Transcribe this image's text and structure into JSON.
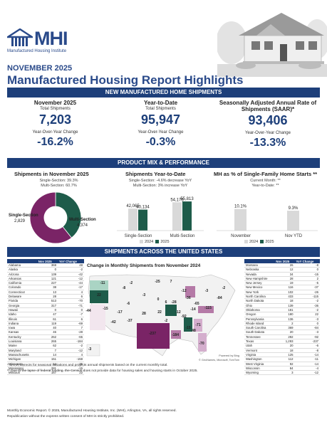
{
  "header": {
    "logo_text": "MHI",
    "logo_sub": "Manufactured Housing Institute",
    "month": "NOVEMBER 2025",
    "title": "Manufactured Housing Report Highlights"
  },
  "sections": {
    "shipments": "NEW MANUFACTURED HOME SHIPMENTS",
    "mix": "PRODUCT MIX & PERFORMANCE",
    "states": "SHIPMENTS ACROSS THE UNITED STATES"
  },
  "kpis": [
    {
      "title": "November 2025",
      "sub": "Total Shipments",
      "value": "7,203",
      "yoy_label": "Year-Over-Year Change",
      "yoy": "-16.2%"
    },
    {
      "title": "Year-to-Date",
      "sub": "Total Shipments",
      "value": "95,947",
      "yoy_label": "Year-Over-Year Change",
      "yoy": "-0.3%"
    },
    {
      "title": "Seasonally Adjusted Annual Rate of Shipments (SAAR)*",
      "sub": "",
      "value": "93,406",
      "yoy_label": "Year-Over-Year Change",
      "yoy": "-13.3%"
    }
  ],
  "mix": {
    "pie_title": "Shipments in November 2025",
    "pie_sub1": "Single-Section: 39.3%",
    "pie_sub2": "Multi-Section: 60.7%",
    "bar_title": "Shipments Year-to-Date",
    "bar_sub1": "Single-Section: -4.6% decrease YoY",
    "bar_sub2": "Multi-Section: 3% increase YoY",
    "line_title": "MH as % of Single-Family Home Starts **",
    "line_sub1": "Current Month: **",
    "line_sub2": "Year-to-Date: **",
    "legend_2024": "2024",
    "legend_2025": "2025"
  },
  "chart_data": [
    {
      "type": "pie",
      "title": "Shipments in November 2025",
      "categories": [
        "Single-Section",
        "Multi-Section"
      ],
      "values": [
        2829,
        4374
      ],
      "labels": [
        "2,829",
        "4,374"
      ],
      "colors": [
        "#1e5c4a",
        "#7a2466"
      ]
    },
    {
      "type": "bar",
      "title": "Shipments Year-to-Date",
      "categories": [
        "Single-Section",
        "Multi-Section"
      ],
      "series": [
        {
          "name": "2024",
          "values": [
            42065,
            54175
          ],
          "labels": [
            "42,065",
            "54,175"
          ],
          "color": "#d9d9d9"
        },
        {
          "name": "2025",
          "values": [
            40134,
            55813
          ],
          "labels": [
            "40,134",
            "55,813"
          ],
          "color": "#1e5c4a"
        }
      ],
      "ylim": [
        0,
        60000
      ]
    },
    {
      "type": "bar",
      "title": "MH as % of Single-Family Home Starts **",
      "categories": [
        "November",
        "Nov YTD"
      ],
      "series": [
        {
          "name": "2024",
          "values": [
            10.1,
            9.3
          ],
          "labels": [
            "10.1%",
            "9.3%"
          ],
          "color": "#d9d9d9"
        }
      ]
    }
  ],
  "states_table": {
    "headers": [
      "",
      "Nov 2025",
      "YoY Change"
    ],
    "left": [
      [
        "Alabama",
        "369",
        "48"
      ],
      [
        "Alaska",
        "0",
        "-2"
      ],
      [
        "Arizona",
        "139",
        "-42"
      ],
      [
        "Arkansas",
        "121",
        "-12"
      ],
      [
        "California",
        "227",
        "-44"
      ],
      [
        "Colorado",
        "38",
        "-17"
      ],
      [
        "Connecticut",
        "13",
        "4"
      ],
      [
        "Delaware",
        "28",
        "6"
      ],
      [
        "Florida",
        "513",
        "-70"
      ],
      [
        "Georgia",
        "317",
        "-71"
      ],
      [
        "Hawaii",
        "0",
        "0"
      ],
      [
        "Idaho",
        "47",
        "-7"
      ],
      [
        "Illinois",
        "61",
        "6"
      ],
      [
        "Indiana",
        "119",
        "-69"
      ],
      [
        "Iowa",
        "40",
        "7"
      ],
      [
        "Kansas",
        "46",
        "-28"
      ],
      [
        "Kentucky",
        "262",
        "-65"
      ],
      [
        "Louisiana",
        "265",
        "-184"
      ],
      [
        "Maine",
        "62",
        "-2"
      ],
      [
        "Maryland",
        "7",
        "-12"
      ],
      [
        "Massachusetts",
        "14",
        "4"
      ],
      [
        "Michigan",
        "151",
        "-159"
      ],
      [
        "Minnesota",
        "54",
        "-25"
      ],
      [
        "Mississippi",
        "281",
        "-15"
      ],
      [
        "Missouri",
        "167",
        "22"
      ]
    ],
    "right": [
      [
        "Montana",
        "26",
        "-8"
      ],
      [
        "Nebraska",
        "12",
        "0"
      ],
      [
        "Nevada",
        "34",
        "-15"
      ],
      [
        "New Hampshire",
        "28",
        "2"
      ],
      [
        "New Jersey",
        "19",
        "-5"
      ],
      [
        "New Mexico",
        "116",
        "-37"
      ],
      [
        "New York",
        "102",
        "-26"
      ],
      [
        "North Carolina",
        "433",
        "-115"
      ],
      [
        "North Dakota",
        "18",
        "-2"
      ],
      [
        "Ohio",
        "139",
        "-36"
      ],
      [
        "Oklahoma",
        "181",
        "-2"
      ],
      [
        "Oregon",
        "180",
        "22"
      ],
      [
        "Pennsylvania",
        "136",
        "-3"
      ],
      [
        "Rhode Island",
        "2",
        "0"
      ],
      [
        "South Carolina",
        "369",
        "-84"
      ],
      [
        "South Dakota",
        "20",
        "-3"
      ],
      [
        "Tennessee",
        "292",
        "-92"
      ],
      [
        "Texas",
        "1,293",
        "-237"
      ],
      [
        "Utah",
        "20",
        "-6"
      ],
      [
        "Vermont",
        "18",
        "-8"
      ],
      [
        "Virginia",
        "125",
        "-14"
      ],
      [
        "Washington",
        "112",
        "-11"
      ],
      [
        "West Virginia",
        "92",
        "-14"
      ],
      [
        "Wisconsin",
        "84",
        "-4"
      ],
      [
        "Wyoming",
        "3",
        "-12"
      ]
    ]
  },
  "map": {
    "title": "Change in Monthly Shipments from November 2024",
    "credit1": "Powered by Bing",
    "credit2": "© GeoNames, Microsoft, TomTom",
    "labels": [
      {
        "v": "-11"
      },
      {
        "v": "22"
      },
      {
        "v": "-8"
      },
      {
        "v": "-2"
      },
      {
        "v": "-25"
      },
      {
        "v": "7"
      },
      {
        "v": "-12"
      },
      {
        "v": "-3"
      },
      {
        "v": "-44"
      },
      {
        "v": "-15"
      },
      {
        "v": "-6"
      },
      {
        "v": "-17"
      },
      {
        "v": "0"
      },
      {
        "v": "6"
      },
      {
        "v": "-28"
      },
      {
        "v": "28"
      },
      {
        "v": "22"
      },
      {
        "v": "-36"
      },
      {
        "v": "-3"
      },
      {
        "v": "-65"
      },
      {
        "v": "-14"
      },
      {
        "v": "-42"
      },
      {
        "v": "-37"
      },
      {
        "v": "-2"
      },
      {
        "v": "-12"
      },
      {
        "v": "-92"
      },
      {
        "v": "-115"
      },
      {
        "v": "-84"
      },
      {
        "v": "-15"
      },
      {
        "v": "48"
      },
      {
        "v": "-71"
      },
      {
        "v": "-237"
      },
      {
        "v": "-184"
      },
      {
        "v": "-70"
      },
      {
        "v": "-2"
      },
      {
        "v": "-3"
      }
    ]
  },
  "notes": {
    "saar": "* SAAR corrects for seasonal variations and projects annual shipments based on the current monthly total.",
    "lapse": "** Due to the lapse of federal funding, the Census does not provide data for housing sales and housing starts in October 2025.",
    "footer1": "Monthly Economic Report. © 2025, Manufactured Housing Institute, Inc. (MHI), Arlington, VA, all rights reserved.",
    "footer2": "Republication without the express written consent of MHI is strictly prohibited."
  },
  "colors": {
    "navy": "#1d3f7a",
    "green": "#1e5c4a",
    "purple": "#7a2466",
    "gray": "#d9d9d9"
  }
}
